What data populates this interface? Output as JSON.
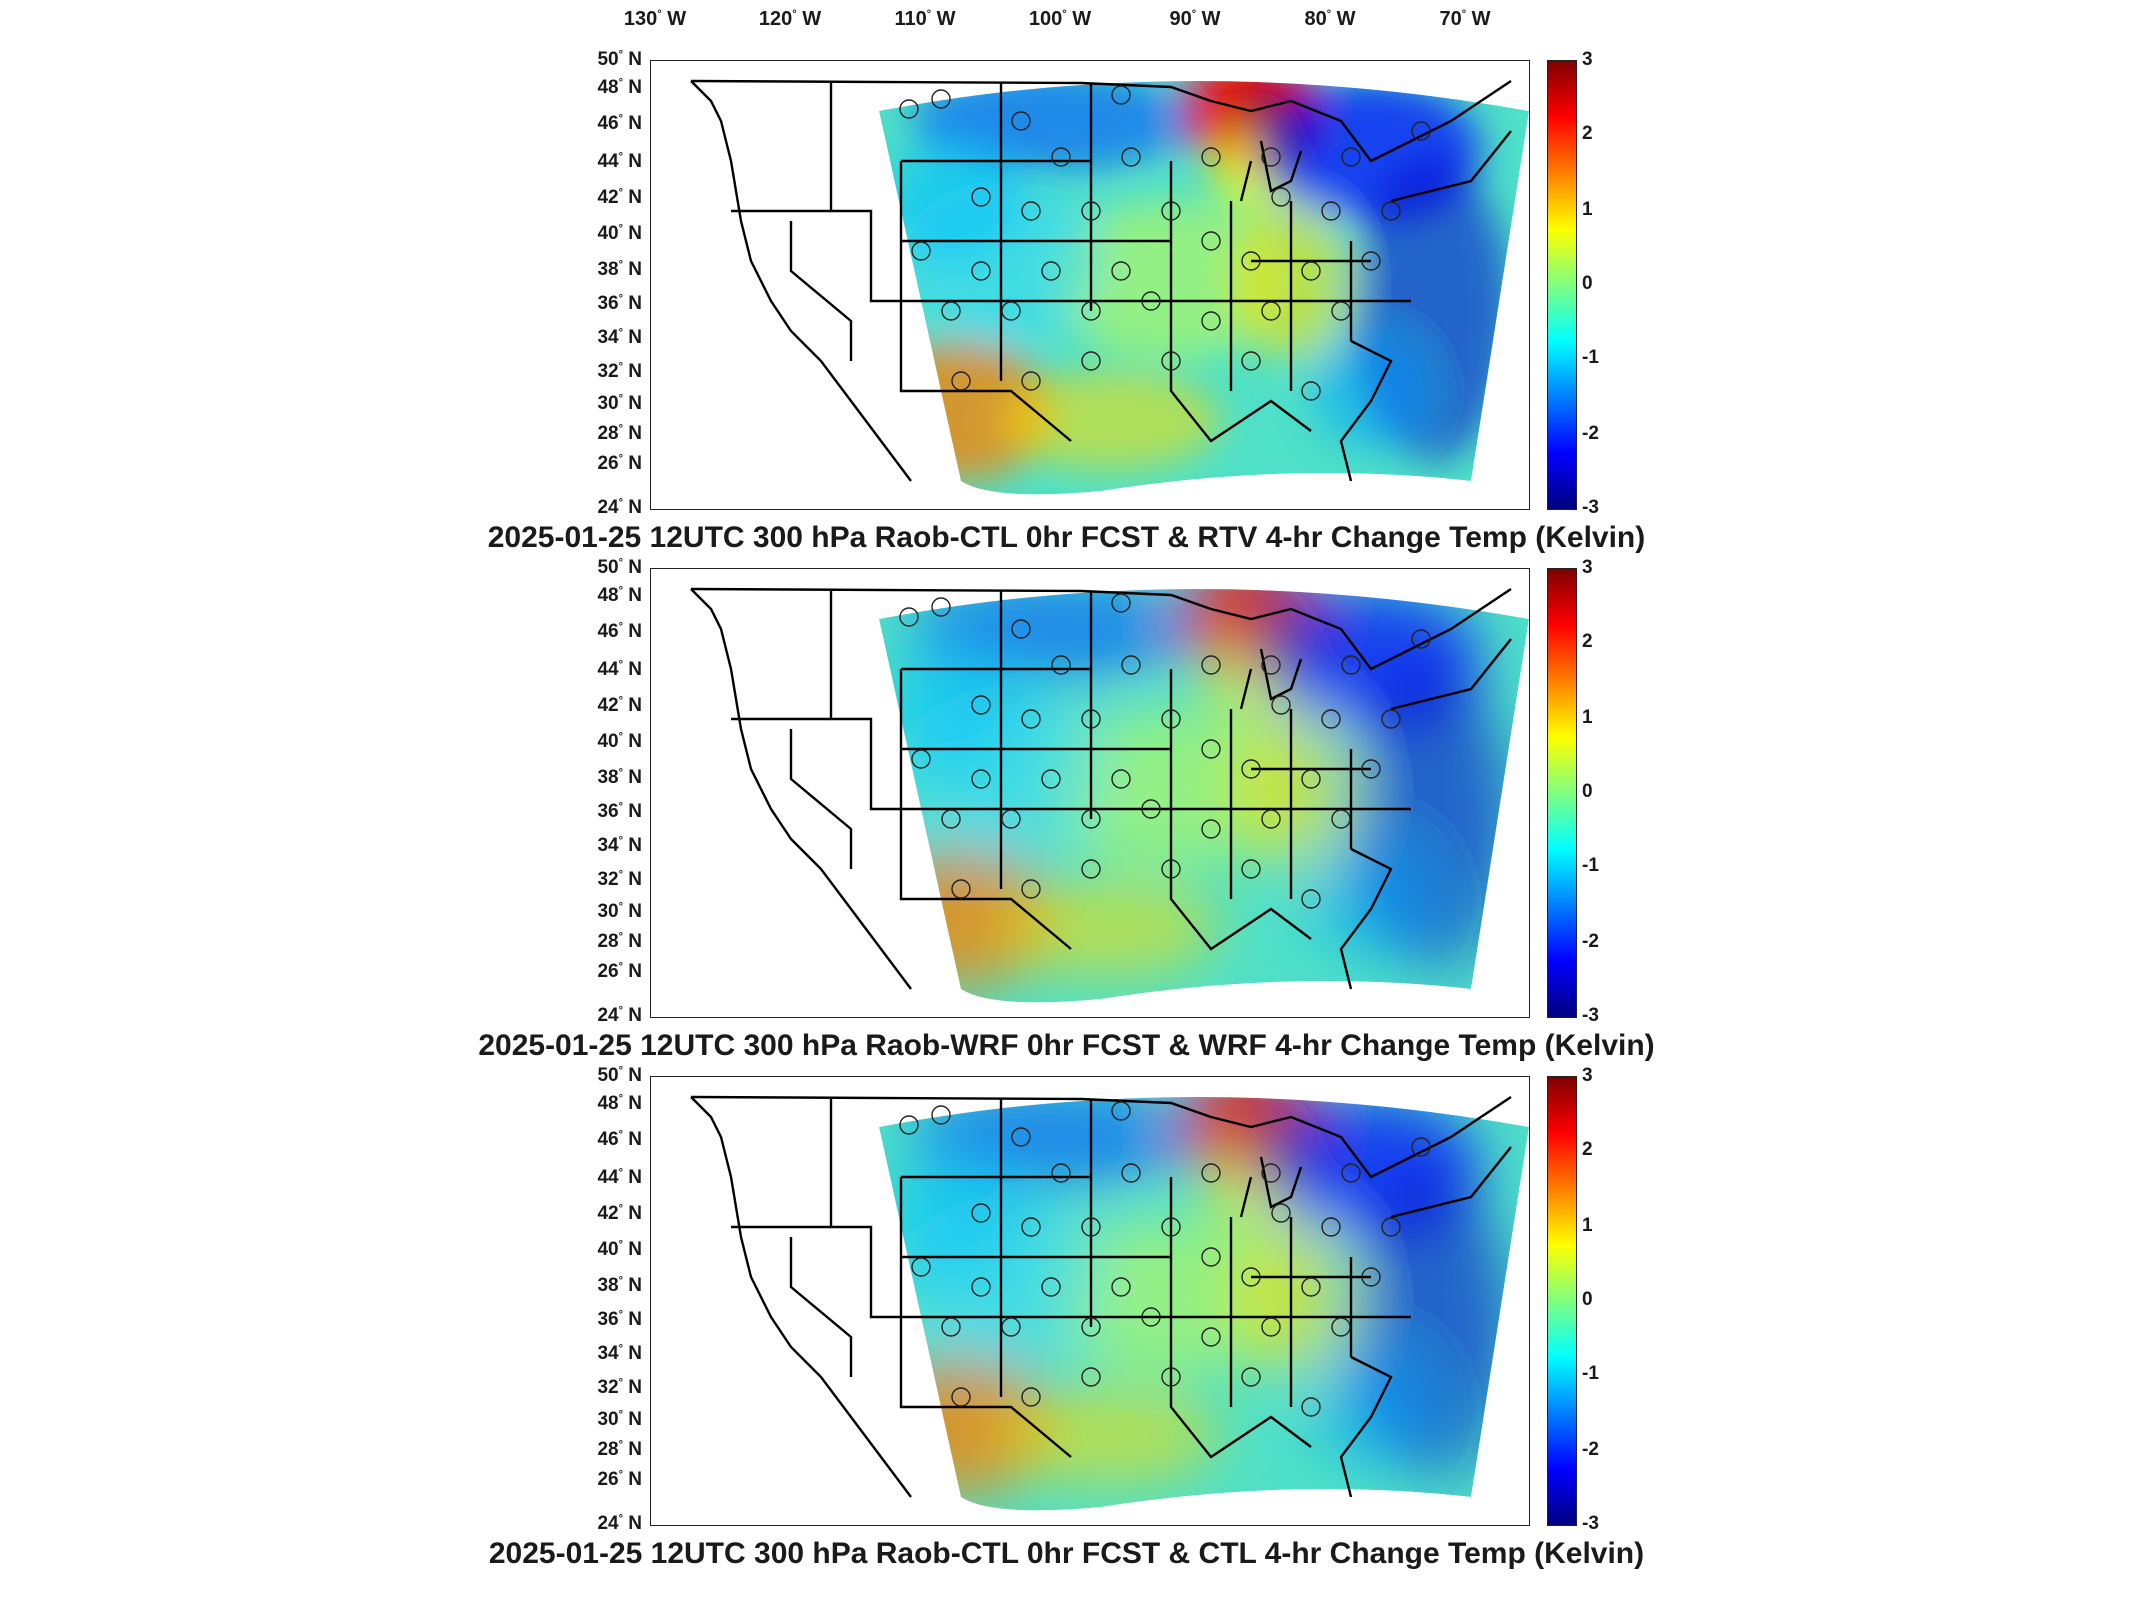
{
  "longitude_labels": [
    "130",
    "120",
    "110",
    "100",
    "90",
    "80",
    "70"
  ],
  "lon_suffix": "W",
  "latitude_labels": [
    "50",
    "48",
    "46",
    "44",
    "42",
    "40",
    "38",
    "36",
    "34",
    "32",
    "30",
    "28",
    "26",
    "24"
  ],
  "lat_suffix": "N",
  "colorbar_ticks": [
    "3",
    "2",
    "1",
    "0",
    "-1",
    "-2",
    "-3"
  ],
  "colors": {
    "jet_min": "#00007f",
    "jet_low": "#0000ff",
    "jet_mid_low": "#00ffff",
    "jet_mid": "#7fff7f",
    "jet_mid_high": "#ffff00",
    "jet_high": "#ff0000",
    "jet_max": "#7f0000"
  },
  "panels": [
    {
      "title": "2025-01-25 12UTC 300 hPa Raob-CTL 0hr FCST & RTV 4-hr Change Temp (Kelvin)"
    },
    {
      "title": "2025-01-25 12UTC 300 hPa Raob-WRF 0hr FCST & WRF 4-hr Change Temp (Kelvin)"
    },
    {
      "title": "2025-01-25 12UTC 300 hPa Raob-CTL 0hr FCST & CTL 4-hr Change Temp (Kelvin)"
    }
  ]
}
